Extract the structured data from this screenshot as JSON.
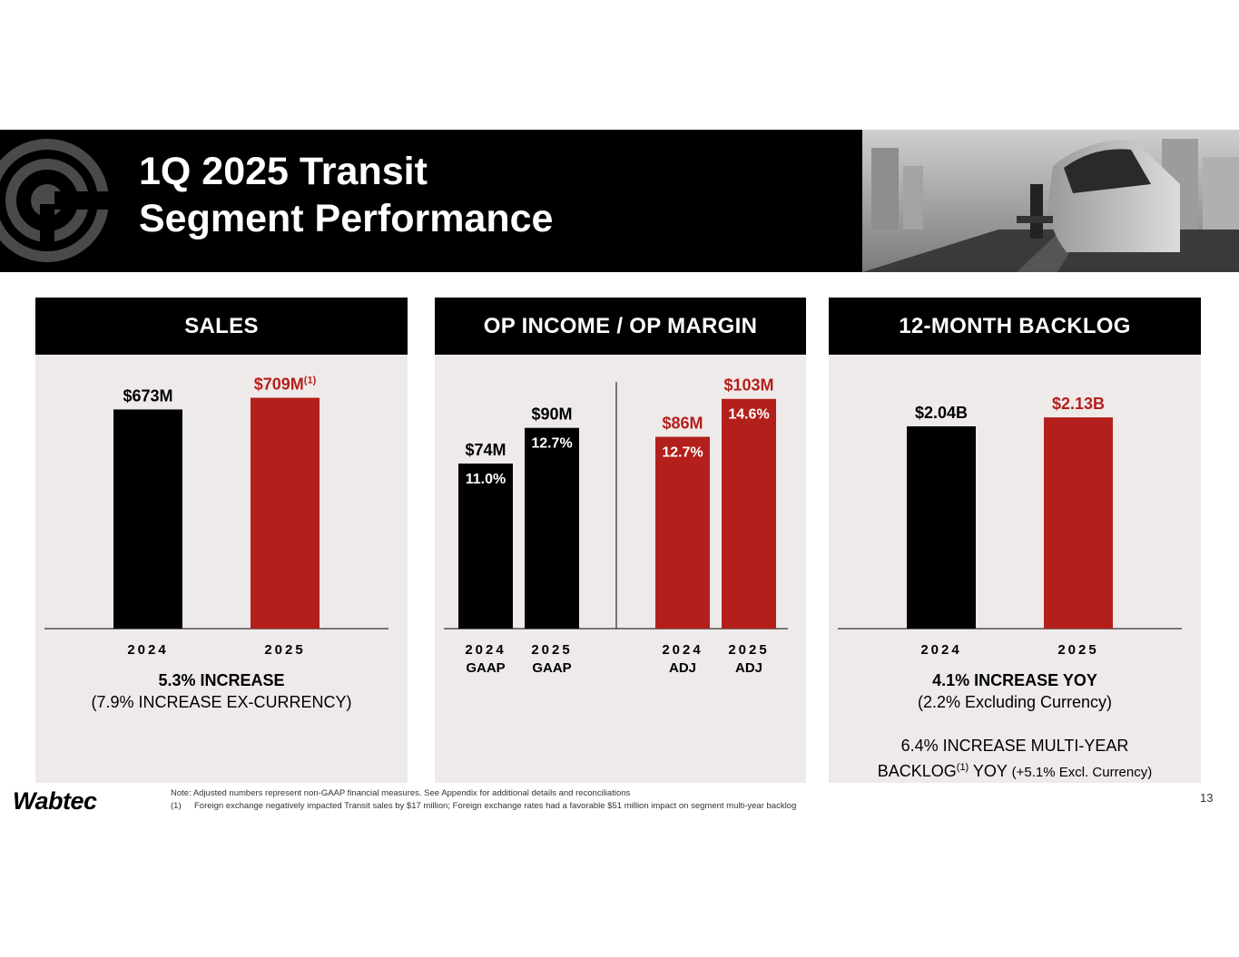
{
  "header": {
    "title_line1": "1Q 2025 Transit",
    "title_line2": "Segment Performance"
  },
  "colors": {
    "black_bar": "#000000",
    "red_bar": "#b31f1b",
    "panel_bg": "#efeaea"
  },
  "sales": {
    "heading": "SALES",
    "summary_bold": "5.3% INCREASE",
    "summary_detail": "(7.9% INCREASE EX-CURRENCY)"
  },
  "op_income": {
    "heading": "OP INCOME / OP MARGIN"
  },
  "backlog": {
    "heading": "12-MONTH BACKLOG",
    "summary_bold": "4.1% INCREASE YOY",
    "summary_detail": "(2.2% Excluding Currency)",
    "multi_year_line1": "6.4% INCREASE MULTI-YEAR",
    "multi_year_line2a": "BACKLOG",
    "multi_year_sup": "(1)",
    "multi_year_line2b": " YOY ",
    "multi_year_line2c": "(+5.1% Excl. Currency)"
  },
  "chart_data": [
    {
      "type": "bar",
      "title": "SALES",
      "unit": "$M",
      "categories": [
        "2024",
        "2025"
      ],
      "values": [
        673,
        709
      ],
      "labels": [
        "$673M",
        "$709M"
      ],
      "label_sup": [
        "",
        "(1)"
      ],
      "colors": [
        "black",
        "red"
      ],
      "ylim": [
        0,
        780
      ]
    },
    {
      "type": "bar",
      "title": "OP INCOME / OP MARGIN",
      "unit": "$M",
      "categories": [
        "2024",
        "2025",
        "2024",
        "2025"
      ],
      "sublabels": [
        "GAAP",
        "GAAP",
        "ADJ",
        "ADJ"
      ],
      "values": [
        74,
        90,
        86,
        103
      ],
      "labels": [
        "$74M",
        "$90M",
        "$86M",
        "$103M"
      ],
      "margins": [
        "11.0%",
        "12.7%",
        "12.7%",
        "14.6%"
      ],
      "colors": [
        "black",
        "black",
        "red",
        "red"
      ],
      "ylim": [
        0,
        170
      ]
    },
    {
      "type": "bar",
      "title": "12-MONTH BACKLOG",
      "unit": "$B",
      "categories": [
        "2024",
        "2025"
      ],
      "values": [
        2.04,
        2.13
      ],
      "labels": [
        "$2.04B",
        "$2.13B"
      ],
      "colors": [
        "black",
        "red"
      ],
      "ylim": [
        0,
        2.36
      ]
    }
  ],
  "footer": {
    "note": "Note: Adjusted numbers represent non-GAAP financial measures. See Appendix for additional details and reconciliations",
    "footnote_index": "(1)",
    "footnote_text": "Foreign exchange negatively impacted Transit sales by $17 million; Foreign exchange rates had a favorable $51 million impact on segment multi-year backlog",
    "brand": "Wabtec",
    "page_number": "13"
  }
}
